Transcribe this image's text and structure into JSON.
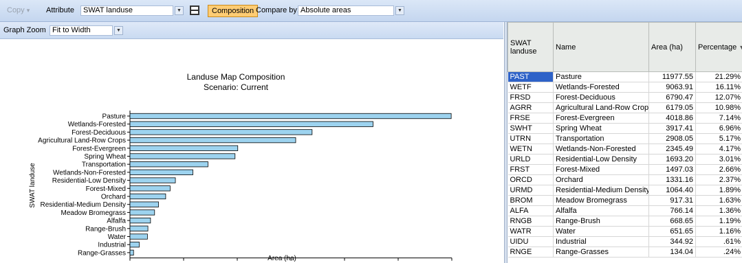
{
  "toolbar": {
    "copy_label": "Copy",
    "copy_arrow": "▾",
    "attribute_label": "Attribute",
    "attribute_value": "SWAT landuse",
    "composition_label": "Composition",
    "compare_label": "Compare by:",
    "compare_value": "Absolute areas",
    "dropdown_glyph": "▼"
  },
  "zoom": {
    "label": "Graph Zoom",
    "value": "Fit to Width"
  },
  "chart_data": {
    "type": "bar",
    "orientation": "horizontal",
    "title": "Landuse Map Composition",
    "subtitle": "Scenario: Current",
    "xlabel": "Area (ha)",
    "ylabel": "SWAT landuse",
    "xlim": [
      0,
      12000
    ],
    "xticks": [
      0,
      2000,
      4000,
      6000,
      8000,
      10000,
      12000
    ],
    "bar_color": "#9dd3ef",
    "grid": false,
    "categories": [
      "Pasture",
      "Wetlands-Forested",
      "Forest-Deciduous",
      "Agricultural Land-Row Crops",
      "Forest-Evergreen",
      "Spring Wheat",
      "Transportation",
      "Wetlands-Non-Forested",
      "Residential-Low Density",
      "Forest-Mixed",
      "Orchard",
      "Residential-Medium Density",
      "Meadow Bromegrass",
      "Alfalfa",
      "Range-Brush",
      "Water",
      "Industrial",
      "Range-Grasses"
    ],
    "values": [
      11977.55,
      9063.91,
      6790.47,
      6179.05,
      4018.86,
      3917.41,
      2908.05,
      2345.49,
      1693.2,
      1497.03,
      1331.16,
      1064.4,
      917.31,
      766.14,
      668.65,
      651.65,
      344.92,
      134.04
    ]
  },
  "table": {
    "columns": [
      "SWAT landuse",
      "Name",
      "Area (ha)",
      "Percentage"
    ],
    "sort_glyph": "▼",
    "selected_row": 0,
    "rows": [
      [
        "PAST",
        "Pasture",
        "11977.55",
        "21.29%"
      ],
      [
        "WETF",
        "Wetlands-Forested",
        "9063.91",
        "16.11%"
      ],
      [
        "FRSD",
        "Forest-Deciduous",
        "6790.47",
        "12.07%"
      ],
      [
        "AGRR",
        "Agricultural Land-Row Crops",
        "6179.05",
        "10.98%"
      ],
      [
        "FRSE",
        "Forest-Evergreen",
        "4018.86",
        "7.14%"
      ],
      [
        "SWHT",
        "Spring Wheat",
        "3917.41",
        "6.96%"
      ],
      [
        "UTRN",
        "Transportation",
        "2908.05",
        "5.17%"
      ],
      [
        "WETN",
        "Wetlands-Non-Forested",
        "2345.49",
        "4.17%"
      ],
      [
        "URLD",
        "Residential-Low Density",
        "1693.20",
        "3.01%"
      ],
      [
        "FRST",
        "Forest-Mixed",
        "1497.03",
        "2.66%"
      ],
      [
        "ORCD",
        "Orchard",
        "1331.16",
        "2.37%"
      ],
      [
        "URMD",
        "Residential-Medium Density",
        "1064.40",
        "1.89%"
      ],
      [
        "BROM",
        "Meadow Bromegrass",
        "917.31",
        "1.63%"
      ],
      [
        "ALFA",
        "Alfalfa",
        "766.14",
        "1.36%"
      ],
      [
        "RNGB",
        "Range-Brush",
        "668.65",
        "1.19%"
      ],
      [
        "WATR",
        "Water",
        "651.65",
        "1.16%"
      ],
      [
        "UIDU",
        "Industrial",
        "344.92",
        ".61%"
      ],
      [
        "RNGE",
        "Range-Grasses",
        "134.04",
        ".24%"
      ]
    ]
  }
}
